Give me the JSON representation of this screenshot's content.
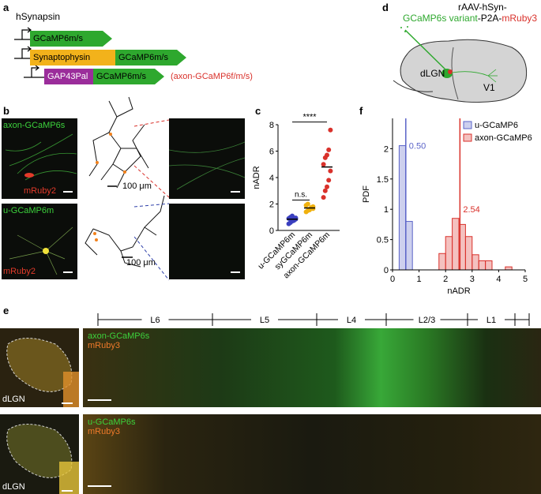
{
  "panel_labels": {
    "a": "a",
    "b": "b",
    "c": "c",
    "d": "d",
    "e": "e",
    "f": "f"
  },
  "panel_a": {
    "promoter": "hSynapsin",
    "construct1": "GCaMP6m/s",
    "construct2_part1": "Synaptophysin",
    "construct2_part2": "GCaMP6m/s",
    "construct3_part1": "GAP43Pal",
    "construct3_part2": "GCaMP6m/s",
    "construct3_note": "(axon-GCaMP6f/m/s)",
    "colors": {
      "green": "#2ea82e",
      "yellow": "#f2b21b",
      "purple": "#9b2d9b",
      "red": "#d9312b"
    }
  },
  "panel_b": {
    "top_green_label": "axon-GCaMP6s",
    "top_red_label": "mRuby2",
    "bottom_green_label": "u-GCaMP6m",
    "bottom_red_label": "mRuby2",
    "scale_top": "100 μm",
    "scale_bottom": "100 μm"
  },
  "panel_c": {
    "chart_data": {
      "type": "scatter",
      "ylabel": "nADR",
      "ylim": [
        0,
        8
      ],
      "yticks": [
        "0",
        "2",
        "4",
        "6",
        "8"
      ],
      "categories": [
        "u-GCaMP6m",
        "syGCaMP6m",
        "axon-GCaMP6m"
      ],
      "colors": [
        "#3a3fbf",
        "#f0b10e",
        "#d9312b"
      ],
      "means": [
        0.85,
        1.7,
        4.8
      ],
      "points": [
        [
          0.5,
          0.6,
          0.7,
          0.8,
          0.85,
          0.9,
          1.0,
          1.1,
          0.75,
          0.95
        ],
        [
          1.4,
          1.5,
          1.6,
          1.7,
          1.8,
          1.9,
          2.0,
          1.55,
          1.75,
          1.65
        ],
        [
          2.5,
          3.0,
          3.3,
          3.8,
          4.5,
          5.0,
          5.5,
          5.7,
          6.1,
          7.6
        ]
      ],
      "sig_ns": "n.s.",
      "sig_star": "****"
    }
  },
  "panel_d": {
    "title_line1": "rAAV-hSyn-",
    "title_green": "GCaMP6s variant",
    "title_dash": "-P2A-",
    "title_red": "mRuby3",
    "dlgn": "dLGN",
    "v1": "V1"
  },
  "panel_f": {
    "chart_data": {
      "type": "bar",
      "ylabel": "PDF",
      "xlabel": "nADR",
      "xlim": [
        0,
        5
      ],
      "ylim": [
        0,
        2.5
      ],
      "xticks": [
        "0",
        "1",
        "2",
        "3",
        "4",
        "5"
      ],
      "yticks": [
        "0",
        "0.5",
        "1",
        "1.5",
        "2"
      ],
      "bin_width": 0.25,
      "series": [
        {
          "name": "u-GCaMP6",
          "color": "#5a63c8",
          "median_label": "0.50",
          "median": 0.5,
          "bins": [
            [
              0.25,
              2.05
            ],
            [
              0.5,
              0.8
            ]
          ]
        },
        {
          "name": "axon-GCaMP6",
          "color": "#d9312b",
          "median_label": "2.54",
          "median": 2.54,
          "bins": [
            [
              1.75,
              0.27
            ],
            [
              2.0,
              0.55
            ],
            [
              2.25,
              0.85
            ],
            [
              2.5,
              0.75
            ],
            [
              2.75,
              0.55
            ],
            [
              3.0,
              0.25
            ],
            [
              3.25,
              0.15
            ],
            [
              3.5,
              0.15
            ],
            [
              4.25,
              0.05
            ]
          ]
        }
      ]
    }
  },
  "panel_e": {
    "layers": [
      "L6",
      "L5",
      "L4",
      "L2/3",
      "L1"
    ],
    "top_green": "axon-GCaMP6s",
    "top_red": "mRuby3",
    "bottom_green": "u-GCaMP6s",
    "bottom_red": "mRuby3",
    "dlgn_top": "dLGN",
    "dlgn_bottom": "dLGN"
  }
}
